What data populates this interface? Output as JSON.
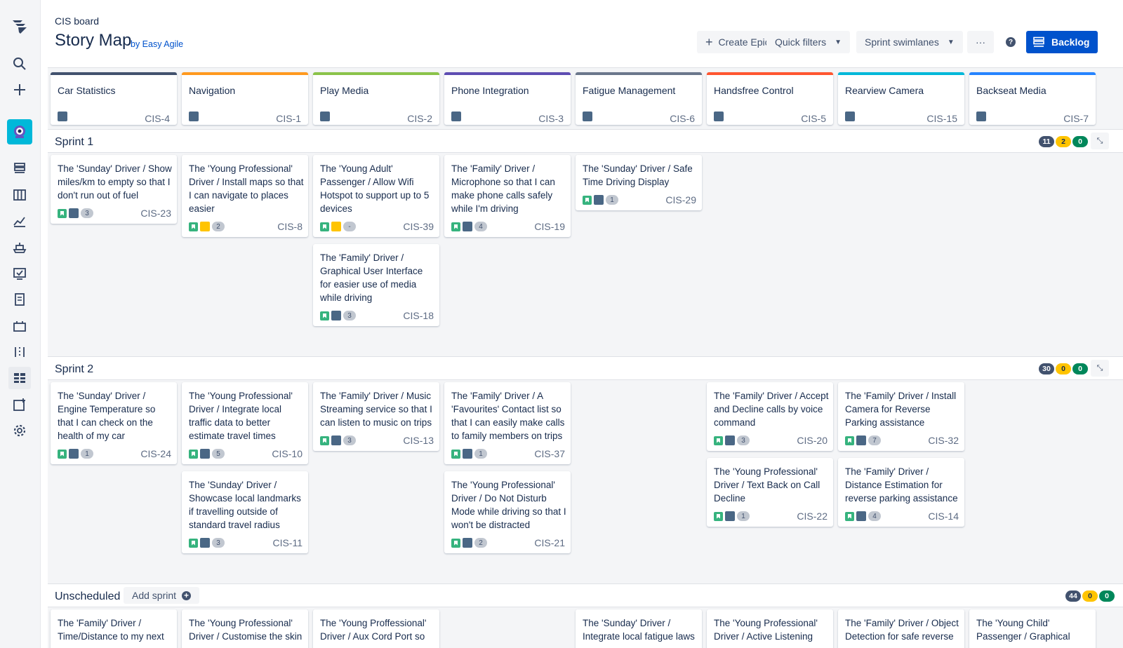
{
  "nav": {
    "icons": [
      "jira-logo-icon",
      "search-icon",
      "create-plus-icon",
      "project-avatar-icon",
      "backlog-icon",
      "board-icon",
      "reports-icon",
      "releases-icon",
      "components-icon",
      "pages-icon",
      "shortcuts-icon",
      "story-map-icon",
      "add-item-icon",
      "settings-icon"
    ]
  },
  "header": {
    "breadcrumb": "CIS board",
    "title": "Story Map",
    "byline": "by Easy Agile",
    "create_epic": "Create Epic",
    "quick_filters": "Quick filters",
    "sprint_swimlanes": "Sprint swimlanes",
    "more": "···",
    "help": "?",
    "backlog": "Backlog"
  },
  "epics": [
    {
      "name": "Car Statistics",
      "key": "CIS-4",
      "color": "#42526e"
    },
    {
      "name": "Navigation",
      "key": "CIS-1",
      "color": "#ff991f"
    },
    {
      "name": "Play Media",
      "key": "CIS-2",
      "color": "#8bc34a"
    },
    {
      "name": "Phone Integration",
      "key": "CIS-3",
      "color": "#5e4db2"
    },
    {
      "name": "Fatigue Management",
      "key": "CIS-6",
      "color": "#6b778c"
    },
    {
      "name": "Handsfree Control",
      "key": "CIS-5",
      "color": "#ff5630"
    },
    {
      "name": "Rearview Camera",
      "key": "CIS-15",
      "color": "#00b8d9"
    },
    {
      "name": "Backseat Media",
      "key": "CIS-7",
      "color": "#2684ff"
    }
  ],
  "lanes": [
    {
      "name": "Sprint 1",
      "todo": "11",
      "progress": "2",
      "done": "0"
    },
    {
      "name": "Sprint 2",
      "todo": "30",
      "progress": "0",
      "done": "0"
    },
    {
      "name": "Unscheduled",
      "add_sprint": "Add sprint",
      "todo": "44",
      "progress": "0",
      "done": "0"
    }
  ],
  "collapse_icon": "⤡",
  "cards": [
    {
      "summary": "The 'Sunday' Driver / Show miles/km to empty so that I don't run out of fuel",
      "estimate": "3",
      "key": "CIS-23",
      "epic_color": "#4a6785"
    },
    {
      "summary": "The 'Young Professional' Driver / Install maps so that I can navigate to places easier",
      "estimate": "2",
      "key": "CIS-8",
      "epic_color": "#ffc400"
    },
    {
      "summary": "The 'Young Adult' Passenger / Allow Wifi Hotspot to support up to 5 devices",
      "estimate": "-",
      "key": "CIS-39",
      "epic_color": "#ffc400"
    },
    {
      "summary": "The 'Family' Driver / Graphical User Interface for easier use of media while driving",
      "estimate": "3",
      "key": "CIS-18",
      "epic_color": "#4a6785"
    },
    {
      "summary": "The 'Family' Driver / Microphone so that I can make phone calls safely while I'm driving",
      "estimate": "4",
      "key": "CIS-19",
      "epic_color": "#4a6785"
    },
    {
      "summary": "The 'Sunday' Driver / Safe Time Driving Display",
      "estimate": "1",
      "key": "CIS-29",
      "epic_color": "#4a6785"
    },
    {
      "summary": "The 'Sunday' Driver / Engine Temperature so that I can check on the health of my car",
      "estimate": "1",
      "key": "CIS-24",
      "epic_color": "#4a6785"
    },
    {
      "summary": "The 'Young Professional' Driver / Integrate local traffic data to better estimate travel times",
      "estimate": "5",
      "key": "CIS-10",
      "epic_color": "#4a6785"
    },
    {
      "summary": "The 'Sunday' Driver / Showcase local landmarks if travelling outside of standard travel radius",
      "estimate": "3",
      "key": "CIS-11",
      "epic_color": "#4a6785"
    },
    {
      "summary": "The 'Family' Driver / Music Streaming service so that I can listen to music on trips",
      "estimate": "3",
      "key": "CIS-13",
      "epic_color": "#4a6785"
    },
    {
      "summary": "The 'Family' Driver / A 'Favourites' Contact list so that I can easily make calls to family members on trips",
      "estimate": "1",
      "key": "CIS-37",
      "epic_color": "#4a6785"
    },
    {
      "summary": "The 'Young Professional' Driver / Do Not Disturb Mode while driving so that I won't be distracted",
      "estimate": "2",
      "key": "CIS-21",
      "epic_color": "#4a6785"
    },
    {
      "summary": "The 'Family' Driver / Accept and Decline calls by voice command",
      "estimate": "3",
      "key": "CIS-20",
      "epic_color": "#4a6785"
    },
    {
      "summary": "The 'Young Professional' Driver / Text Back on Call Decline",
      "estimate": "1",
      "key": "CIS-22",
      "epic_color": "#4a6785"
    },
    {
      "summary": "The 'Family' Driver / Install Camera for Reverse Parking assistance",
      "estimate": "7",
      "key": "CIS-32",
      "epic_color": "#4a6785"
    },
    {
      "summary": "The 'Family' Driver / Distance Estimation for reverse parking assistance",
      "estimate": "4",
      "key": "CIS-14",
      "epic_color": "#4a6785"
    },
    {
      "summary": "The 'Family' Driver / Time/Distance to my next",
      "estimate": "",
      "key": "",
      "epic_color": "#4a6785"
    },
    {
      "summary": "The 'Young Professional' Driver / Customise the skin",
      "estimate": "",
      "key": "",
      "epic_color": "#4a6785"
    },
    {
      "summary": "The 'Young Proffessional' Driver / Aux Cord Port so",
      "estimate": "",
      "key": "",
      "epic_color": "#4a6785"
    },
    {
      "summary": "The 'Sunday' Driver / Integrate local fatigue laws",
      "estimate": "",
      "key": "",
      "epic_color": "#4a6785"
    },
    {
      "summary": "The 'Young Professional' Driver / Active Listening",
      "estimate": "",
      "key": "",
      "epic_color": "#4a6785"
    },
    {
      "summary": "The 'Family' Driver / Object Detection for safe reverse",
      "estimate": "",
      "key": "",
      "epic_color": "#4a6785"
    },
    {
      "summary": "The 'Young Child' Passenger / Graphical",
      "estimate": "",
      "key": "",
      "epic_color": "#4a6785"
    }
  ]
}
